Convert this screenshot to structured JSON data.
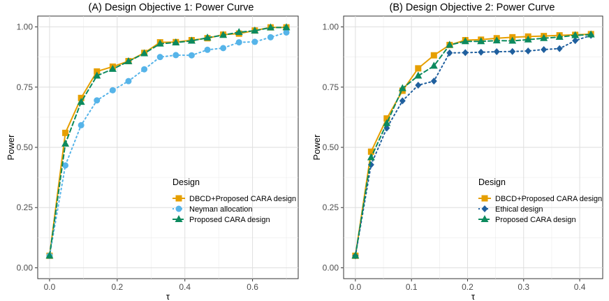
{
  "chart_data": [
    {
      "type": "line",
      "title": "(A) Design Objective 1: Power Curve",
      "xlabel": "τ",
      "ylabel": "Power",
      "xlim": [
        -0.035,
        0.735
      ],
      "ylim": [
        -0.045,
        1.045
      ],
      "xticks": [
        0.0,
        0.2,
        0.4,
        0.6
      ],
      "xtick_labels": [
        "0.0",
        "0.2",
        "0.4",
        "0.6"
      ],
      "yticks": [
        0.0,
        0.25,
        0.5,
        0.75,
        1.0
      ],
      "ytick_labels": [
        "0.00",
        "0.25",
        "0.50",
        "0.75",
        "1.00"
      ],
      "grid": true,
      "legend": {
        "title": "Design",
        "position": "bottom-right",
        "entries": [
          "DBCD+Proposed CARA design",
          "Neyman allocation",
          "Proposed CARA design"
        ]
      },
      "x": [
        0.0,
        0.0467,
        0.0933,
        0.14,
        0.1867,
        0.2333,
        0.28,
        0.3267,
        0.3733,
        0.42,
        0.4667,
        0.5133,
        0.56,
        0.6067,
        0.6533,
        0.7
      ],
      "series": [
        {
          "name": "DBCD+Proposed CARA design",
          "color": "#E69F00",
          "marker": "square",
          "dash": "solid",
          "values": [
            0.05,
            0.56,
            0.705,
            0.815,
            0.835,
            0.858,
            0.892,
            0.936,
            0.937,
            0.945,
            0.953,
            0.968,
            0.972,
            0.985,
            0.998,
            0.998
          ]
        },
        {
          "name": "Neyman allocation",
          "color": "#56B4E9",
          "marker": "circle",
          "dash": "dotted",
          "values": [
            0.05,
            0.425,
            0.592,
            0.695,
            0.737,
            0.775,
            0.824,
            0.875,
            0.883,
            0.882,
            0.905,
            0.912,
            0.936,
            0.938,
            0.957,
            0.977
          ]
        },
        {
          "name": "Proposed CARA design",
          "color": "#0C8A5E",
          "marker": "triangle",
          "dash": "dashed",
          "values": [
            0.05,
            0.515,
            0.688,
            0.797,
            0.825,
            0.857,
            0.89,
            0.93,
            0.935,
            0.942,
            0.955,
            0.966,
            0.978,
            0.984,
            0.997,
            0.998
          ]
        }
      ]
    },
    {
      "type": "line",
      "title": "(B) Design Objective 2: Power Curve",
      "xlabel": "τ",
      "ylabel": "Power",
      "xlim": [
        -0.021,
        0.441
      ],
      "ylim": [
        -0.045,
        1.045
      ],
      "xticks": [
        0.0,
        0.1,
        0.2,
        0.3,
        0.4
      ],
      "xtick_labels": [
        "0.0",
        "0.1",
        "0.2",
        "0.3",
        "0.4"
      ],
      "yticks": [
        0.0,
        0.25,
        0.5,
        0.75,
        1.0
      ],
      "ytick_labels": [
        "0.00",
        "0.25",
        "0.50",
        "0.75",
        "1.00"
      ],
      "grid": true,
      "legend": {
        "title": "Design",
        "position": "bottom-right",
        "entries": [
          "DBCD+Proposed CARA design",
          "Ethical design",
          "Proposed CARA design"
        ]
      },
      "x": [
        0.0,
        0.028,
        0.056,
        0.084,
        0.112,
        0.14,
        0.168,
        0.196,
        0.224,
        0.252,
        0.28,
        0.308,
        0.336,
        0.364,
        0.392,
        0.42
      ],
      "series": [
        {
          "name": "DBCD+Proposed CARA design",
          "color": "#E69F00",
          "marker": "square",
          "dash": "solid",
          "values": [
            0.05,
            0.482,
            0.62,
            0.735,
            0.828,
            0.882,
            0.925,
            0.945,
            0.947,
            0.953,
            0.957,
            0.96,
            0.962,
            0.965,
            0.967,
            0.97
          ]
        },
        {
          "name": "Ethical design",
          "color": "#1F5F9E",
          "marker": "diamond",
          "dash": "dotted",
          "values": [
            0.05,
            0.428,
            0.58,
            0.693,
            0.758,
            0.775,
            0.892,
            0.893,
            0.895,
            0.897,
            0.898,
            0.9,
            0.906,
            0.91,
            0.943,
            0.965
          ]
        },
        {
          "name": "Proposed CARA design",
          "color": "#0C8A5E",
          "marker": "triangle",
          "dash": "dashed",
          "values": [
            0.05,
            0.458,
            0.6,
            0.745,
            0.797,
            0.838,
            0.925,
            0.94,
            0.94,
            0.943,
            0.942,
            0.947,
            0.953,
            0.958,
            0.965,
            0.968
          ]
        }
      ]
    }
  ]
}
